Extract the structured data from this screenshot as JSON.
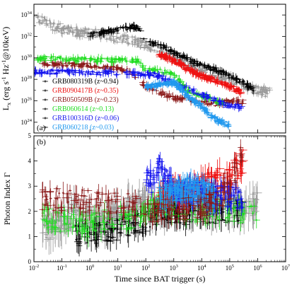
{
  "chart_data": [
    {
      "type": "scatter",
      "panel_label": "(a)",
      "ylabel": "L_x (erg s^-1 Hz^-1 @10keV)",
      "yscale": "log",
      "ylim": [
        1e+23,
        1e+35
      ],
      "xlim": [
        0.01,
        10000000.0
      ],
      "xscale": "log",
      "y_tick_labels": [
        "10^24",
        "10^26",
        "10^28",
        "10^30",
        "10^32",
        "10^34"
      ],
      "y_tick_values": [
        1e+24,
        1e+26,
        1e+28,
        1e+30,
        1e+32,
        1e+34
      ],
      "legend": {
        "placement": "left-middle",
        "entries": [
          {
            "label": "GRB080319B (z~0.94)",
            "color": "#000000"
          },
          {
            "label": "GRB090417B (z~0.35)",
            "color": "#ee1111"
          },
          {
            "label": "GRB050509B (z~0.23)",
            "color": "#8b1a1a"
          },
          {
            "label": "GRB060614 (z~0.13)",
            "color": "#22dd22"
          },
          {
            "label": "GRB100316D (z~0.06)",
            "color": "#1414ee"
          },
          {
            "label": "GRB060218 (z~0.03)",
            "color": "#2299ee"
          }
        ]
      },
      "series": [
        {
          "color": "#9a9a9a",
          "points": [
            [
              0.012,
              1e+34
            ],
            [
              0.02,
              3e+33
            ],
            [
              0.05,
              8e+32
            ],
            [
              0.1,
              5e+32
            ],
            [
              0.3,
              3e+32
            ],
            [
              1,
              2e+32
            ],
            [
              3,
              1.5e+32
            ],
            [
              10,
              8e+31
            ],
            [
              30,
              4e+31
            ],
            [
              100,
              2e+31
            ],
            [
              300,
              5e+30
            ],
            [
              1000,
              1e+30
            ],
            [
              3000,
              3e+29
            ],
            [
              10000,
              1e+29
            ],
            [
              30000,
              3e+28
            ],
            [
              100000,
              1e+28
            ],
            [
              300000,
              3e+27
            ],
            [
              1000000,
              1e+27
            ],
            [
              3000000,
              5e+26
            ]
          ]
        },
        {
          "color": "#000000",
          "points": [
            [
              1,
              1.5e+32
            ],
            [
              3,
              2.5e+32
            ],
            [
              10,
              4e+32
            ],
            [
              30,
              8e+32
            ],
            [
              60,
              6e+32
            ],
            [
              100,
              3e+31
            ],
            [
              200,
              2e+31
            ],
            [
              300,
              1.5e+31
            ],
            [
              1000,
              3e+30
            ],
            [
              3000,
              8e+29
            ],
            [
              10000,
              2e+29
            ],
            [
              30000,
              8e+28
            ],
            [
              100000,
              2e+28
            ],
            [
              300000,
              5e+27
            ],
            [
              800000,
              1e+27
            ]
          ]
        },
        {
          "color": "#ee1111",
          "points": [
            [
              300,
              2e+30
            ],
            [
              600,
              1e+30
            ],
            [
              1000,
              5e+29
            ],
            [
              3000,
              1e+29
            ],
            [
              10000,
              2e+28
            ],
            [
              30000,
              8e+27
            ],
            [
              100000,
              2e+27
            ],
            [
              300000,
              5e+26
            ]
          ]
        },
        {
          "color": "#8b1a1a",
          "points": [
            [
              0.02,
              3e+29
            ],
            [
              0.1,
              2.5e+29
            ],
            [
              1,
              2e+29
            ],
            [
              10,
              1e+29
            ],
            [
              30,
              5e+28
            ],
            [
              100,
              2e+27
            ],
            [
              300,
              6e+26
            ],
            [
              1000,
              2e+26
            ],
            [
              30000,
              5e+25
            ],
            [
              100000,
              1e+26
            ],
            [
              300000,
              8e+25
            ]
          ]
        },
        {
          "color": "#22dd22",
          "points": [
            [
              0.01,
              1e+30
            ],
            [
              0.1,
              8e+29
            ],
            [
              1,
              7e+29
            ],
            [
              10,
              6e+29
            ],
            [
              50,
              5e+29
            ],
            [
              100,
              8e+28
            ],
            [
              300,
              6e+28
            ],
            [
              1000,
              3e+28
            ],
            [
              3000,
              1e+27
            ],
            [
              10000,
              3e+26
            ],
            [
              30000,
              1e+26
            ],
            [
              100000,
              3e+25
            ]
          ]
        },
        {
          "color": "#1414ee",
          "points": [
            [
              0.01,
              5e+28
            ],
            [
              0.1,
              5e+28
            ],
            [
              1,
              4e+28
            ],
            [
              10,
              4e+28
            ],
            [
              100,
              3e+28
            ],
            [
              200,
              3e+28
            ],
            [
              300,
              2e+28
            ],
            [
              1000,
              5e+27
            ],
            [
              100000,
              3e+25
            ],
            [
              300000,
              3e+25
            ]
          ]
        },
        {
          "color": "#2299ee",
          "points": [
            [
              100,
              2e+27
            ],
            [
              300,
              3e+27
            ],
            [
              1000,
              5e+27
            ],
            [
              2000,
              1e+27
            ],
            [
              3000,
              3e+26
            ],
            [
              5000,
              1e+26
            ],
            [
              10000,
              3e+25
            ],
            [
              30000,
              2e+24
            ],
            [
              100000,
              5e+23
            ]
          ]
        }
      ]
    },
    {
      "type": "scatter",
      "panel_label": "(b)",
      "ylabel": "Photon Index Γ",
      "xlabel": "Time since BAT trigger (s)",
      "xscale": "log",
      "xlim": [
        0.01,
        10000000.0
      ],
      "ylim": [
        0,
        5
      ],
      "y_tick_labels": [
        "0",
        "1",
        "2",
        "3",
        "4",
        "5"
      ],
      "y_tick_values": [
        0,
        1,
        2,
        3,
        4,
        5
      ],
      "x_tick_labels": [
        "10^-2",
        "10^-1",
        "10^0",
        "10^1",
        "10^2",
        "10^3",
        "10^4",
        "10^5",
        "10^6",
        "10^7"
      ],
      "x_tick_values": [
        0.01,
        0.1,
        1,
        10,
        100,
        1000,
        10000,
        100000,
        1000000,
        10000000
      ],
      "series": [
        {
          "color": "#9a9a9a",
          "points": [
            [
              0.02,
              1.5
            ],
            [
              0.05,
              1.2
            ],
            [
              0.1,
              1.6
            ],
            [
              0.3,
              2.0
            ],
            [
              1,
              1.7
            ],
            [
              3,
              1.4
            ],
            [
              10,
              1.8
            ],
            [
              30,
              2.2
            ],
            [
              100,
              2.5
            ],
            [
              300,
              2.0
            ],
            [
              1000,
              2.3
            ],
            [
              3000,
              2.1
            ],
            [
              10000,
              2.4
            ],
            [
              30000,
              2.0
            ],
            [
              100000,
              2.2
            ],
            [
              300000,
              2.1
            ],
            [
              1000000,
              2.3
            ]
          ]
        },
        {
          "color": "#000000",
          "points": [
            [
              0.3,
              1.0
            ],
            [
              1,
              1.1
            ],
            [
              3,
              1.2
            ],
            [
              10,
              1.3
            ],
            [
              30,
              1.5
            ],
            [
              100,
              1.6
            ],
            [
              300,
              1.9
            ],
            [
              1000,
              2.0
            ],
            [
              3000,
              1.9
            ],
            [
              10000,
              2.0
            ],
            [
              30000,
              1.9
            ],
            [
              100000,
              2.0
            ],
            [
              300000,
              2.1
            ]
          ]
        },
        {
          "color": "#22dd22",
          "points": [
            [
              0.02,
              1.8
            ],
            [
              0.1,
              1.6
            ],
            [
              0.3,
              1.5
            ],
            [
              1,
              1.4
            ],
            [
              3,
              1.6
            ],
            [
              10,
              1.8
            ],
            [
              30,
              1.7
            ],
            [
              100,
              1.9
            ],
            [
              300,
              2.3
            ],
            [
              1000,
              2.2
            ],
            [
              3000,
              2.1
            ],
            [
              10000,
              2.0
            ],
            [
              100000,
              2.1
            ],
            [
              1000000,
              1.8
            ]
          ]
        },
        {
          "color": "#ee1111",
          "points": [
            [
              300,
              2.5
            ],
            [
              1000,
              2.8
            ],
            [
              3000,
              2.6
            ],
            [
              10000,
              3.0
            ],
            [
              30000,
              3.2
            ],
            [
              100000,
              3.4
            ],
            [
              300000,
              4.0
            ]
          ]
        },
        {
          "color": "#1414ee",
          "points": [
            [
              100,
              3.5
            ],
            [
              200,
              3.0
            ],
            [
              300,
              3.8
            ],
            [
              1000,
              2.8
            ],
            [
              100000,
              2.6
            ],
            [
              300000,
              2.5
            ]
          ]
        },
        {
          "color": "#2299ee",
          "points": [
            [
              300,
              2.5
            ],
            [
              1000,
              2.7
            ],
            [
              3000,
              2.9
            ],
            [
              10000,
              2.8
            ],
            [
              30000,
              2.6
            ]
          ]
        },
        {
          "color": "#8b1a1a",
          "points": [
            [
              0.02,
              2.5
            ],
            [
              1,
              2.4
            ],
            [
              30,
              2.3
            ],
            [
              100,
              2.0
            ],
            [
              10000,
              2.2
            ],
            [
              100000,
              2.8
            ],
            [
              300000,
              4.5
            ]
          ]
        }
      ]
    }
  ]
}
